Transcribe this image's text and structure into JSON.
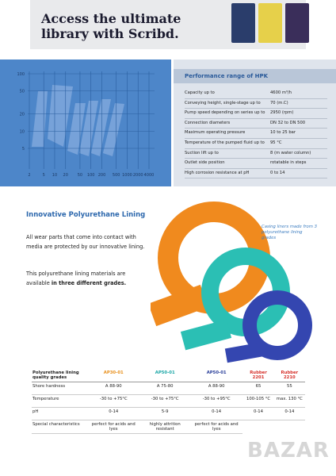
{
  "banner": {
    "title": "Access the ultimate library with Scribd."
  },
  "performance_chart": {
    "yticks": [
      100,
      50,
      20,
      10,
      5
    ],
    "xticks": [
      2,
      5,
      10,
      20,
      50,
      100,
      200,
      500,
      1000,
      2000,
      4000
    ]
  },
  "performance_table": {
    "title": "Performance range of HPK",
    "rows": [
      [
        "Capacity up to",
        "4600 m³/h"
      ],
      [
        "Conveying height, single-stage up to",
        "70 (m.C)"
      ],
      [
        "Pump speed depending on series up to",
        "2950 (rpm)"
      ],
      [
        "Connection diameters",
        "DN 32 to DN 500"
      ],
      [
        "Maximum operating pressure",
        "10 to 25 bar"
      ],
      [
        "Temperature of the pumped fluid up to",
        "95 °C"
      ],
      [
        "Suction lift up to",
        "8 (m water column)"
      ],
      [
        "Outlet side position",
        "rotatable in steps"
      ],
      [
        "High corrosion resistance at pH",
        "0 to 14"
      ]
    ]
  },
  "lining": {
    "title": "Innovative Polyurethane Lining",
    "paragraph1": "All wear parts that come into contact with media are protected by our innovative lining.",
    "paragraph2_start": "This polyurethane lining materials are available ",
    "paragraph2_bold": "in three different grades.",
    "caption": "Casing liners made from 3 polyurethane lining grades"
  },
  "grades_table": {
    "rows": [
      [
        "Polyurethane lining quality grades",
        "AP30-01",
        "AP50-01",
        "AP50-01",
        "Rubber 2201",
        "Rubber 2210"
      ],
      [
        "Shore hardness",
        "A 88-90",
        "A 75-80",
        "A 88-90",
        "65",
        "55"
      ],
      [
        "Temperature",
        "-30 to +75°C",
        "-30 to +75°C",
        "-30 to +95°C",
        "100-105 °C",
        "max. 130 °C"
      ],
      [
        "pH",
        "0-14",
        "5-9",
        "0-14",
        "0-14",
        "0-14"
      ],
      [
        "Special characteristics",
        "perfect for acids and lyes",
        "highly attrition resistant",
        "perfect for acids and lyes"
      ]
    ],
    "header_colors": [
      "#222222",
      "#e8901c",
      "#1aa6a6",
      "#2a3f9a",
      "#d6302a",
      "#d6302a"
    ]
  },
  "watermark": "BAZAR"
}
